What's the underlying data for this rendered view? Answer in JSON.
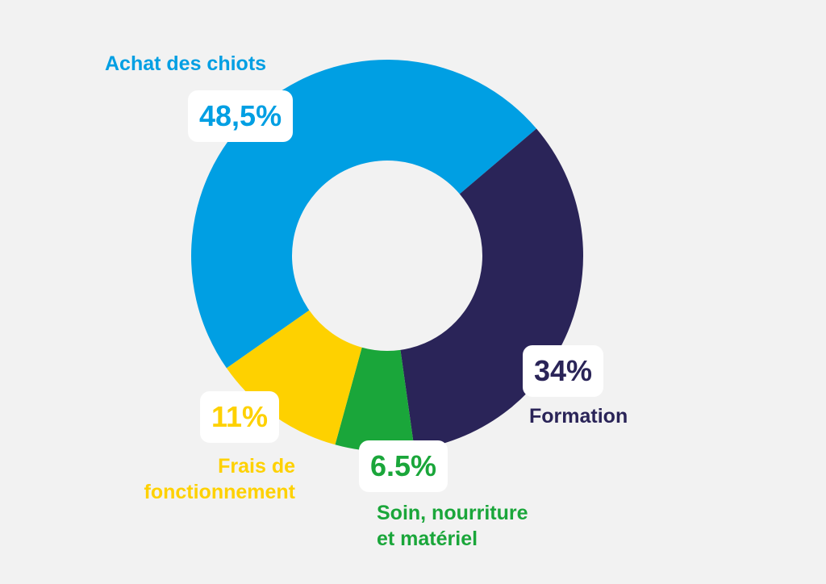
{
  "chart_data": {
    "type": "pie",
    "donut": true,
    "start_angle_deg": -125,
    "slices": [
      {
        "label": "Achat des chiots",
        "label_lines": [
          "Achat des chiots"
        ],
        "value": 48.5,
        "display_value": "48,5%",
        "color": "#009fe3"
      },
      {
        "label": "Formation",
        "label_lines": [
          "Formation"
        ],
        "value": 34,
        "display_value": "34%",
        "color": "#2a2458"
      },
      {
        "label": "Soin, nourriture et matériel",
        "label_lines": [
          "Soin, nourriture",
          "et matériel"
        ],
        "value": 6.5,
        "display_value": "6.5%",
        "color": "#1aa63a"
      },
      {
        "label": "Frais de fonctionnement",
        "label_lines": [
          "Frais de",
          "fonctionnement"
        ],
        "value": 11,
        "display_value": "11%",
        "color": "#fed100"
      }
    ]
  }
}
